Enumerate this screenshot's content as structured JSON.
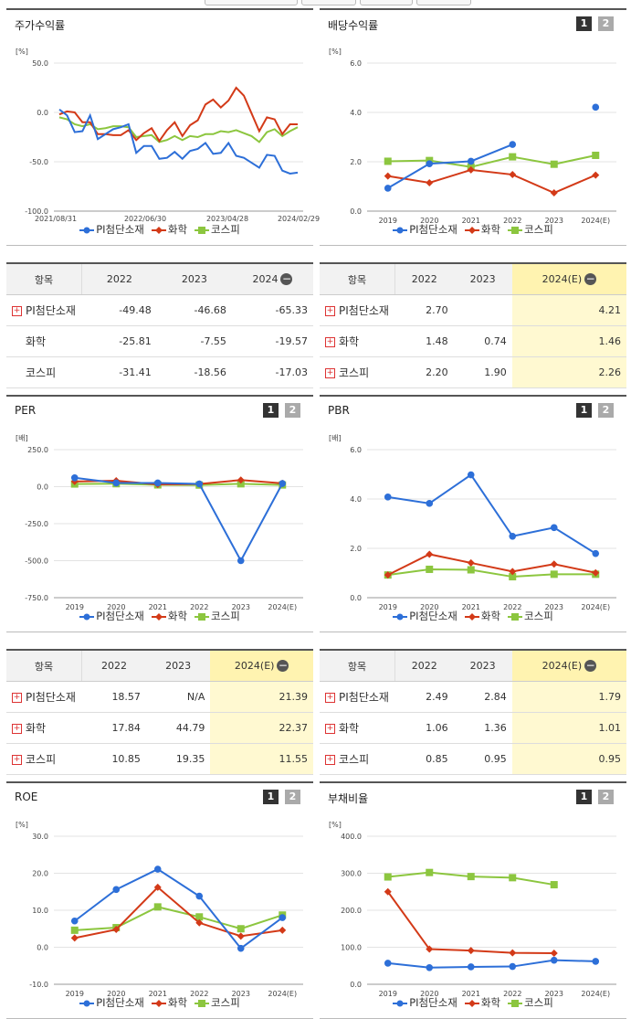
{
  "legend": [
    "PI첨단소재",
    "화학",
    "코스피"
  ],
  "colors": {
    "pi": "#2d6fd8",
    "chem": "#d33a18",
    "kospi": "#8cc63f"
  },
  "badges": {
    "one": "1",
    "two": "2"
  },
  "panels": {
    "stock": {
      "title": "주가수익률"
    },
    "dividend": {
      "title": "배당수익률"
    },
    "per": {
      "title": "PER"
    },
    "pbr": {
      "title": "PBR"
    },
    "roe": {
      "title": "ROE"
    },
    "debt": {
      "title": "부채비율"
    }
  },
  "tables": {
    "stock": {
      "headers": [
        "항목",
        "2022",
        "2023",
        "2024"
      ],
      "rows": [
        {
          "name": "PI첨단소재",
          "plus": true,
          "values": [
            "-49.48",
            "-46.68",
            "-65.33"
          ]
        },
        {
          "name": "화학",
          "plus": false,
          "values": [
            "-25.81",
            "-7.55",
            "-19.57"
          ]
        },
        {
          "name": "코스피",
          "plus": false,
          "values": [
            "-31.41",
            "-18.56",
            "-17.03"
          ]
        }
      ]
    },
    "dividend": {
      "headers": [
        "항목",
        "2022",
        "2023",
        "2024(E)"
      ],
      "rows": [
        {
          "name": "PI첨단소재",
          "plus": true,
          "values": [
            "2.70",
            "",
            "4.21"
          ]
        },
        {
          "name": "화학",
          "plus": true,
          "values": [
            "1.48",
            "0.74",
            "1.46"
          ]
        },
        {
          "name": "코스피",
          "plus": true,
          "values": [
            "2.20",
            "1.90",
            "2.26"
          ]
        }
      ]
    },
    "per": {
      "headers": [
        "항목",
        "2022",
        "2023",
        "2024(E)"
      ],
      "rows": [
        {
          "name": "PI첨단소재",
          "plus": true,
          "values": [
            "18.57",
            "N/A",
            "21.39"
          ]
        },
        {
          "name": "화학",
          "plus": true,
          "values": [
            "17.84",
            "44.79",
            "22.37"
          ]
        },
        {
          "name": "코스피",
          "plus": true,
          "values": [
            "10.85",
            "19.35",
            "11.55"
          ]
        }
      ]
    },
    "pbr": {
      "headers": [
        "항목",
        "2022",
        "2023",
        "2024(E)"
      ],
      "rows": [
        {
          "name": "PI첨단소재",
          "plus": true,
          "values": [
            "2.49",
            "2.84",
            "1.79"
          ]
        },
        {
          "name": "화학",
          "plus": true,
          "values": [
            "1.06",
            "1.36",
            "1.01"
          ]
        },
        {
          "name": "코스피",
          "plus": true,
          "values": [
            "0.85",
            "0.95",
            "0.95"
          ]
        }
      ]
    }
  },
  "chart_data": [
    {
      "id": "stock",
      "type": "line",
      "ylabel": "[%]",
      "ylim": [
        -100,
        50
      ],
      "yticks": [
        "50.0",
        "0.0",
        "-50.0",
        "-100.0"
      ],
      "xticks": [
        "2021/08/31",
        "2022/06/30",
        "2023/04/28",
        "2024/02/29"
      ],
      "series": [
        {
          "name": "PI첨단소재",
          "values": [
            3,
            -3,
            -20,
            -19,
            -3,
            -27,
            -22,
            -17,
            -15,
            -12,
            -41,
            -34,
            -34,
            -47,
            -46,
            -40,
            -47,
            -39,
            -37,
            -31,
            -42,
            -41,
            -31,
            -44,
            -46,
            -51,
            -56,
            -43,
            -44,
            -59,
            -62,
            -61
          ]
        },
        {
          "name": "화학",
          "values": [
            -2,
            1,
            0,
            -10,
            -10,
            -22,
            -22,
            -23,
            -23,
            -18,
            -28,
            -21,
            -16,
            -29,
            -18,
            -10,
            -24,
            -13,
            -8,
            8,
            13,
            5,
            12,
            25,
            17,
            -1,
            -19,
            -5,
            -7,
            -22,
            -12,
            -12
          ]
        },
        {
          "name": "코스피",
          "values": [
            -5,
            -7,
            -12,
            -14,
            -12,
            -17,
            -16,
            -14,
            -14,
            -15,
            -25,
            -24,
            -23,
            -30,
            -28,
            -24,
            -28,
            -24,
            -25,
            -22,
            -22,
            -19,
            -20,
            -18,
            -21,
            -24,
            -30,
            -20,
            -17,
            -24,
            -19,
            -15
          ]
        }
      ]
    },
    {
      "id": "dividend",
      "type": "line",
      "ylabel": "[%]",
      "ylim": [
        0,
        6
      ],
      "yticks": [
        "6.0",
        "4.0",
        "2.0",
        "0.0"
      ],
      "categories": [
        "2019",
        "2020",
        "2021",
        "2022",
        "2023",
        "2024(E)"
      ],
      "series": [
        {
          "name": "PI첨단소재",
          "values": [
            0.93,
            1.92,
            2.02,
            2.7,
            null,
            4.21
          ]
        },
        {
          "name": "화학",
          "values": [
            1.42,
            1.15,
            1.67,
            1.48,
            0.74,
            1.46
          ]
        },
        {
          "name": "코스피",
          "values": [
            2.02,
            2.05,
            1.79,
            2.2,
            1.9,
            2.26
          ]
        }
      ]
    },
    {
      "id": "per",
      "type": "line",
      "ylabel": "[배]",
      "ylim": [
        -750,
        250
      ],
      "yticks": [
        "250.0",
        "0.0",
        "-250.0",
        "-500.0",
        "-750.0"
      ],
      "categories": [
        "2019",
        "2020",
        "2021",
        "2022",
        "2023",
        "2024(E)"
      ],
      "series": [
        {
          "name": "PI첨단소재",
          "values": [
            60,
            25,
            25,
            18.57,
            -500,
            21.39
          ]
        },
        {
          "name": "화학",
          "values": [
            35,
            40,
            15,
            17.84,
            44.79,
            22.37
          ]
        },
        {
          "name": "코스피",
          "values": [
            18,
            20,
            12,
            10.85,
            19.35,
            11.55
          ]
        }
      ]
    },
    {
      "id": "pbr",
      "type": "line",
      "ylabel": "[배]",
      "ylim": [
        0,
        6
      ],
      "yticks": [
        "6.0",
        "4.0",
        "2.0",
        "0.0"
      ],
      "categories": [
        "2019",
        "2020",
        "2021",
        "2022",
        "2023",
        "2024(E)"
      ],
      "series": [
        {
          "name": "PI첨단소재",
          "values": [
            4.08,
            3.82,
            4.98,
            2.49,
            2.84,
            1.79
          ]
        },
        {
          "name": "화학",
          "values": [
            0.92,
            1.76,
            1.41,
            1.06,
            1.36,
            1.01
          ]
        },
        {
          "name": "코스피",
          "values": [
            0.92,
            1.15,
            1.13,
            0.85,
            0.95,
            0.95
          ]
        }
      ]
    },
    {
      "id": "roe",
      "type": "line",
      "ylabel": "[%]",
      "ylim": [
        -10,
        30
      ],
      "yticks": [
        "30.0",
        "20.0",
        "10.0",
        "0.0",
        "-10.0"
      ],
      "categories": [
        "2019",
        "2020",
        "2021",
        "2022",
        "2023",
        "2024(E)"
      ],
      "series": [
        {
          "name": "PI첨단소재",
          "values": [
            7.1,
            15.6,
            21.1,
            13.8,
            -0.3,
            8.0
          ]
        },
        {
          "name": "화학",
          "values": [
            2.5,
            4.8,
            16.2,
            6.6,
            3.0,
            4.6
          ]
        },
        {
          "name": "코스피",
          "values": [
            4.6,
            5.3,
            10.9,
            8.2,
            5.0,
            8.7
          ]
        }
      ]
    },
    {
      "id": "debt",
      "type": "line",
      "ylabel": "[%]",
      "ylim": [
        0,
        400
      ],
      "yticks": [
        "400.0",
        "300.0",
        "200.0",
        "100.0",
        "0.0"
      ],
      "categories": [
        "2019",
        "2020",
        "2021",
        "2022",
        "2023",
        "2024(E)"
      ],
      "series": [
        {
          "name": "PI첨단소재",
          "values": [
            57,
            45,
            47,
            48,
            65,
            62
          ]
        },
        {
          "name": "화학",
          "values": [
            250,
            95,
            91,
            85,
            84,
            null
          ]
        },
        {
          "name": "코스피",
          "values": [
            290,
            302,
            291,
            288,
            269,
            null
          ]
        }
      ]
    }
  ]
}
